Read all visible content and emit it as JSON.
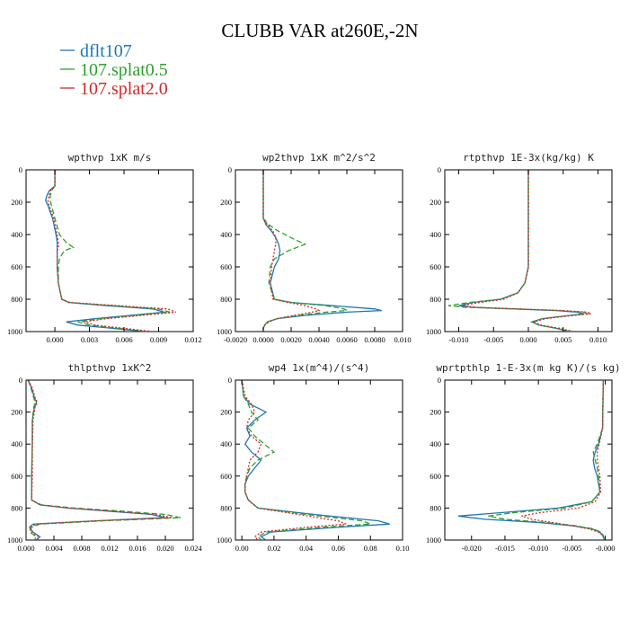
{
  "figure": {
    "title": "CLUBB VAR at260E,-2N"
  },
  "legend": [
    {
      "name": "dflt107",
      "color": "#1f77b4",
      "dash": ""
    },
    {
      "name": "107.splat0.5",
      "color": "#2ca02c",
      "dash": "6,3"
    },
    {
      "name": "107.splat2.0",
      "color": "#d62728",
      "dash": "2,2"
    }
  ],
  "chart_data": [
    {
      "type": "line",
      "title": "wpthvp  1xK m/s",
      "xlim": [
        -0.0025,
        0.012
      ],
      "ylim": [
        1000,
        0
      ],
      "xticks": [
        0.0,
        0.003,
        0.006,
        0.009,
        0.012
      ],
      "xtick_labels": [
        "0.000",
        "0.003",
        "0.006",
        "0.009",
        "0.012"
      ],
      "yticks": [
        0,
        200,
        400,
        600,
        800,
        1000
      ],
      "ytick_labels": [
        "0",
        "200",
        "400",
        "600",
        "800",
        "1000"
      ],
      "y": [
        0,
        100,
        130,
        160,
        190,
        220,
        300,
        400,
        450,
        480,
        500,
        550,
        600,
        700,
        800,
        820,
        840,
        860,
        880,
        900,
        920,
        940,
        960,
        980,
        1000
      ],
      "series": [
        {
          "name": "dflt107",
          "values": [
            0.0,
            0.0,
            -0.0005,
            -0.0007,
            -0.0008,
            -0.0006,
            -0.0002,
            0.0001,
            0.0002,
            0.0002,
            0.0002,
            0.0002,
            0.0002,
            0.0003,
            0.0006,
            0.0012,
            0.0045,
            0.0085,
            0.0095,
            0.0065,
            0.0035,
            0.001,
            0.002,
            0.005,
            0.008
          ]
        },
        {
          "name": "107.splat0.5",
          "values": [
            0.0,
            0.0,
            -0.0003,
            -0.0004,
            -0.0004,
            -0.0003,
            0.0,
            0.0004,
            0.001,
            0.0016,
            0.0008,
            0.0004,
            0.0003,
            0.0003,
            0.0006,
            0.0012,
            0.005,
            0.009,
            0.01,
            0.007,
            0.004,
            0.002,
            0.003,
            0.0055,
            0.008
          ]
        },
        {
          "name": "107.splat2.0",
          "values": [
            0.0,
            0.0,
            -0.0004,
            -0.0005,
            -0.0006,
            -0.0005,
            -0.0001,
            0.0002,
            0.0003,
            0.0003,
            0.0002,
            0.0002,
            0.0002,
            0.0003,
            0.0006,
            0.0013,
            0.0055,
            0.0098,
            0.0105,
            0.0075,
            0.0045,
            0.0025,
            0.0035,
            0.006,
            0.0085
          ]
        }
      ]
    },
    {
      "type": "line",
      "title": "wp2thvp  1xK m^2/s^2",
      "xlim": [
        -0.002,
        0.01
      ],
      "ylim": [
        1000,
        0
      ],
      "xticks": [
        -0.002,
        0.0,
        0.002,
        0.004,
        0.006,
        0.008,
        0.01
      ],
      "xtick_labels": [
        "-0.0020",
        "0.0000",
        "0.0020",
        "0.0040",
        "0.0060",
        "0.0080",
        "0.010"
      ],
      "yticks": [
        0,
        200,
        400,
        600,
        800,
        1000
      ],
      "ytick_labels": [
        "0",
        "200",
        "400",
        "600",
        "800",
        "1000"
      ],
      "y": [
        0,
        300,
        340,
        380,
        420,
        460,
        500,
        550,
        600,
        700,
        800,
        820,
        840,
        860,
        870,
        880,
        900,
        920,
        940,
        960,
        980,
        1000
      ],
      "series": [
        {
          "name": "dflt107",
          "values": [
            0.0,
            0.0,
            0.0002,
            0.0006,
            0.0009,
            0.0011,
            0.0012,
            0.0011,
            0.0008,
            0.0005,
            0.0008,
            0.002,
            0.005,
            0.008,
            0.0085,
            0.006,
            0.003,
            0.001,
            0.0003,
            0.0001,
            0.0,
            0.0
          ]
        },
        {
          "name": "107.splat0.5",
          "values": [
            0.0,
            0.0,
            0.0004,
            0.0011,
            0.002,
            0.003,
            0.0018,
            0.0008,
            0.0005,
            0.0004,
            0.0008,
            0.002,
            0.0045,
            0.0058,
            0.006,
            0.0045,
            0.0025,
            0.001,
            0.0003,
            0.0001,
            0.0,
            0.0
          ]
        },
        {
          "name": "107.splat2.0",
          "values": [
            0.0,
            0.0,
            0.0003,
            0.0007,
            0.0009,
            0.0009,
            0.0008,
            0.0007,
            0.0006,
            0.0005,
            0.0007,
            0.0018,
            0.003,
            0.0038,
            0.004,
            0.0035,
            0.0022,
            0.001,
            0.0004,
            0.0001,
            0.0,
            0.0
          ]
        }
      ]
    },
    {
      "type": "line",
      "title": "rtpthvp  1E-3x(kg/kg) K",
      "xlim": [
        -0.012,
        0.012
      ],
      "ylim": [
        1000,
        0
      ],
      "xticks": [
        -0.01,
        -0.005,
        0.0,
        0.005,
        0.01
      ],
      "xtick_labels": [
        "-0.010",
        "-0.005",
        "0.000",
        "0.005",
        "0.010"
      ],
      "yticks": [
        0,
        200,
        400,
        600,
        800,
        1000
      ],
      "ytick_labels": [
        "0",
        "200",
        "400",
        "600",
        "800",
        "1000"
      ],
      "y": [
        0,
        400,
        600,
        700,
        760,
        800,
        820,
        840,
        850,
        860,
        870,
        880,
        890,
        900,
        920,
        940,
        960,
        980,
        1000
      ],
      "series": [
        {
          "name": "dflt107",
          "values": [
            0.0,
            0.0,
            0.0,
            -0.0005,
            -0.0015,
            -0.004,
            -0.008,
            -0.01,
            -0.008,
            -0.002,
            0.004,
            0.007,
            0.008,
            0.006,
            0.002,
            0.0005,
            0.0015,
            0.004,
            0.006
          ]
        },
        {
          "name": "107.splat0.5",
          "values": [
            0.0,
            0.0,
            0.0,
            -0.0005,
            -0.0015,
            -0.004,
            -0.0085,
            -0.0115,
            -0.009,
            -0.002,
            0.0045,
            0.008,
            0.0085,
            0.006,
            0.002,
            0.0005,
            0.0015,
            0.004,
            0.006
          ]
        },
        {
          "name": "107.splat2.0",
          "values": [
            0.0,
            0.0,
            0.0,
            -0.0005,
            -0.0015,
            -0.0035,
            -0.007,
            -0.0095,
            -0.0075,
            -0.0015,
            0.005,
            0.0085,
            0.009,
            0.0065,
            0.0025,
            0.0008,
            0.0018,
            0.0045,
            0.0065
          ]
        }
      ]
    },
    {
      "type": "line",
      "title": "thlpthvp  1xK^2",
      "xlim": [
        0.0,
        0.024
      ],
      "ylim": [
        1000,
        0
      ],
      "xticks": [
        0.0,
        0.004,
        0.008,
        0.012,
        0.016,
        0.02,
        0.024
      ],
      "xtick_labels": [
        "0.000",
        "0.004",
        "0.008",
        "0.012",
        "0.016",
        "0.020",
        "0.024"
      ],
      "yticks": [
        0,
        200,
        400,
        600,
        800,
        1000
      ],
      "ytick_labels": [
        "0",
        "200",
        "400",
        "600",
        "800",
        "1000"
      ],
      "y": [
        0,
        50,
        80,
        110,
        140,
        170,
        250,
        400,
        600,
        750,
        780,
        800,
        820,
        840,
        860,
        880,
        900,
        920,
        950,
        980,
        1000
      ],
      "series": [
        {
          "name": "dflt107",
          "values": [
            0.0003,
            0.0008,
            0.001,
            0.0012,
            0.0015,
            0.0012,
            0.0009,
            0.0009,
            0.0008,
            0.0008,
            0.002,
            0.006,
            0.012,
            0.018,
            0.02,
            0.01,
            0.001,
            0.0005,
            0.001,
            0.002,
            0.0015
          ]
        },
        {
          "name": "107.splat0.5",
          "values": [
            0.0003,
            0.0007,
            0.0009,
            0.0011,
            0.0013,
            0.0011,
            0.0009,
            0.0009,
            0.0008,
            0.0008,
            0.0022,
            0.007,
            0.014,
            0.02,
            0.0222,
            0.011,
            0.002,
            0.0008,
            0.0005,
            0.0015,
            0.0012
          ]
        },
        {
          "name": "107.splat2.0",
          "values": [
            0.0003,
            0.0009,
            0.0011,
            0.0013,
            0.0016,
            0.0013,
            0.001,
            0.0009,
            0.0009,
            0.0008,
            0.002,
            0.006,
            0.0125,
            0.0185,
            0.021,
            0.01,
            0.0015,
            0.0005,
            0.0008,
            0.0018,
            0.0015
          ]
        }
      ]
    },
    {
      "type": "line",
      "title": "wp4  1x(m^4)/(s^4)",
      "xlim": [
        -0.004,
        0.1
      ],
      "ylim": [
        1000,
        0
      ],
      "xticks": [
        0.0,
        0.02,
        0.04,
        0.06,
        0.08,
        0.1
      ],
      "xtick_labels": [
        "0.00",
        "0.02",
        "0.04",
        "0.06",
        "0.08",
        "0.10"
      ],
      "yticks": [
        0,
        200,
        400,
        600,
        800,
        1000
      ],
      "ytick_labels": [
        "0",
        "200",
        "400",
        "600",
        "800",
        "1000"
      ],
      "y": [
        0,
        100,
        150,
        200,
        250,
        300,
        350,
        400,
        450,
        500,
        550,
        600,
        650,
        700,
        750,
        800,
        840,
        880,
        900,
        920,
        950,
        980,
        1000
      ],
      "series": [
        {
          "name": "dflt107",
          "values": [
            0.0,
            0.001,
            0.005,
            0.015,
            0.008,
            0.003,
            0.005,
            0.002,
            0.006,
            0.012,
            0.008,
            0.004,
            0.002,
            0.002,
            0.004,
            0.01,
            0.045,
            0.085,
            0.092,
            0.06,
            0.018,
            0.012,
            0.015
          ]
        },
        {
          "name": "107.splat0.5",
          "values": [
            0.0,
            0.001,
            0.004,
            0.006,
            0.01,
            0.004,
            0.008,
            0.014,
            0.02,
            0.01,
            0.005,
            0.003,
            0.002,
            0.002,
            0.004,
            0.01,
            0.04,
            0.075,
            0.08,
            0.05,
            0.015,
            0.01,
            0.012
          ]
        },
        {
          "name": "107.splat2.0",
          "values": [
            0.0,
            0.002,
            0.006,
            0.008,
            0.004,
            0.003,
            0.006,
            0.012,
            0.01,
            0.005,
            0.004,
            0.003,
            0.002,
            0.002,
            0.004,
            0.01,
            0.035,
            0.06,
            0.065,
            0.04,
            0.012,
            0.008,
            0.01
          ]
        }
      ]
    },
    {
      "type": "line",
      "title": "wprtpthlp  1-E-3x(m kg K)/(s kg)",
      "xlim": [
        -0.024,
        0.001
      ],
      "ylim": [
        1000,
        0
      ],
      "xticks": [
        -0.02,
        -0.015,
        -0.01,
        -0.005,
        0.0
      ],
      "xtick_labels": [
        "-0.020",
        "-0.015",
        "-0.010",
        "-0.005",
        "-0.000"
      ],
      "yticks": [
        0,
        200,
        400,
        600,
        800,
        1000
      ],
      "ytick_labels": [
        "0",
        "200",
        "400",
        "600",
        "800",
        "1000"
      ],
      "y": [
        0,
        300,
        400,
        450,
        500,
        550,
        600,
        700,
        760,
        800,
        830,
        850,
        870,
        890,
        910,
        930,
        950,
        970,
        990,
        1000
      ],
      "series": [
        {
          "name": "dflt107",
          "values": [
            -0.0003,
            -0.0004,
            -0.001,
            -0.0015,
            -0.0018,
            -0.0016,
            -0.0012,
            -0.0008,
            -0.002,
            -0.007,
            -0.016,
            -0.022,
            -0.018,
            -0.01,
            -0.005,
            -0.002,
            -0.0008,
            -0.0004,
            -0.0002,
            -0.0001
          ]
        },
        {
          "name": "107.splat0.5",
          "values": [
            -0.0003,
            -0.0004,
            -0.0012,
            -0.0018,
            -0.0015,
            -0.0012,
            -0.001,
            -0.0008,
            -0.002,
            -0.006,
            -0.014,
            -0.0175,
            -0.015,
            -0.009,
            -0.0045,
            -0.0018,
            -0.0007,
            -0.0003,
            -0.0002,
            -0.0001
          ]
        },
        {
          "name": "107.splat2.0",
          "values": [
            -0.0003,
            -0.0004,
            -0.0009,
            -0.0012,
            -0.0012,
            -0.001,
            -0.0008,
            -0.0007,
            -0.0015,
            -0.004,
            -0.01,
            -0.0125,
            -0.011,
            -0.008,
            -0.005,
            -0.0025,
            -0.001,
            -0.0004,
            -0.0002,
            -0.0001
          ]
        }
      ]
    }
  ]
}
